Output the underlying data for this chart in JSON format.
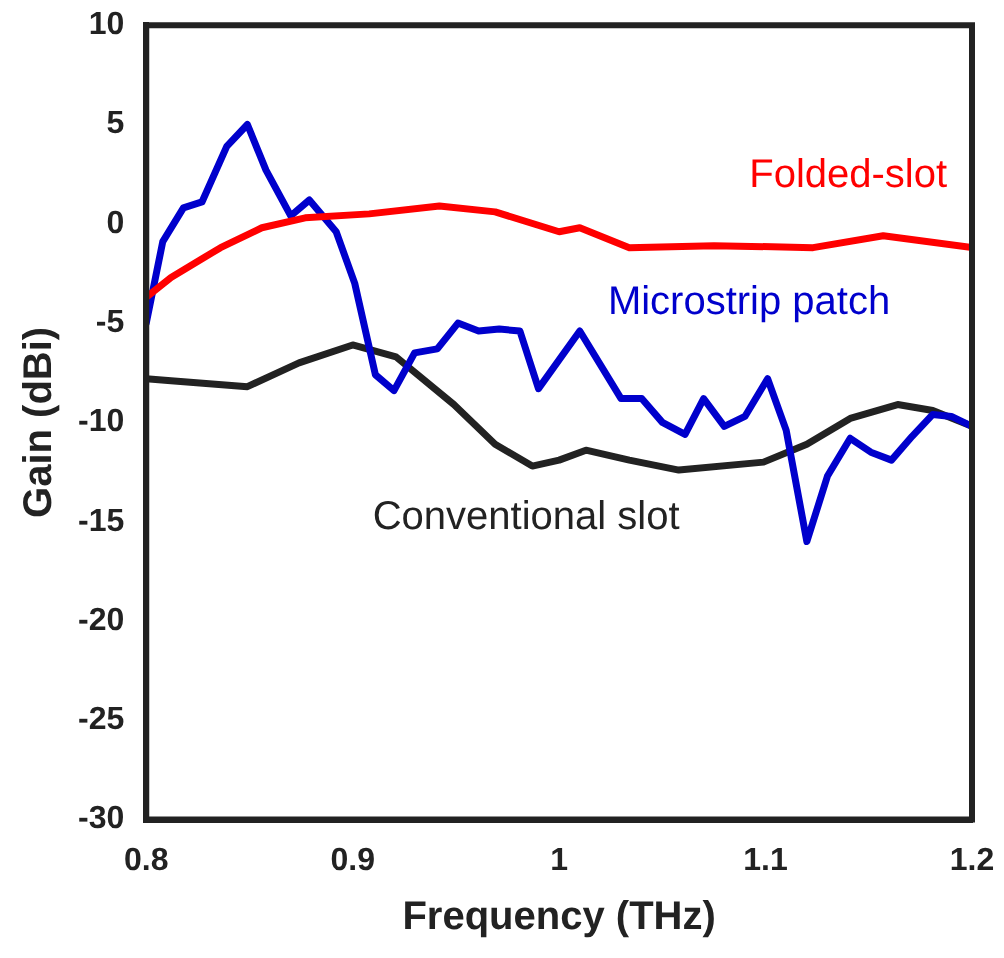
{
  "chart_data": {
    "type": "line",
    "xlabel": "Frequency (THz)",
    "ylabel": "Gain (dBi)",
    "xlim": [
      0.8,
      1.2
    ],
    "xticks": [
      0.8,
      0.9,
      1,
      1.1,
      1.2
    ],
    "ylim": [
      -30,
      10
    ],
    "yticks": [
      -30,
      -25,
      -20,
      -15,
      -10,
      -5,
      0,
      5,
      10
    ],
    "grid": false,
    "legend": false,
    "marker": "none",
    "line_style": "solid",
    "series": [
      {
        "name": "Folded-slot",
        "color": "#ff0000",
        "x": [
          0.8,
          0.812,
          0.836,
          0.856,
          0.877,
          0.908,
          0.942,
          0.969,
          1.0,
          1.01,
          1.034,
          1.075,
          1.123,
          1.157,
          1.2
        ],
        "values": [
          -3.7,
          -2.7,
          -1.2,
          -0.2,
          0.3,
          0.5,
          0.9,
          0.6,
          -0.4,
          -0.2,
          -1.2,
          -1.1,
          -1.2,
          -0.6,
          -1.2
        ]
      },
      {
        "name": "Microstrip patch",
        "color": "#0000cc",
        "x": [
          0.8,
          0.808,
          0.818,
          0.827,
          0.839,
          0.849,
          0.858,
          0.87,
          0.879,
          0.892,
          0.901,
          0.911,
          0.92,
          0.93,
          0.941,
          0.951,
          0.961,
          0.971,
          0.981,
          0.99,
          1.01,
          1.03,
          1.04,
          1.05,
          1.061,
          1.07,
          1.08,
          1.09,
          1.101,
          1.11,
          1.12,
          1.13,
          1.141,
          1.151,
          1.161,
          1.171,
          1.181,
          1.19,
          1.2
        ],
        "values": [
          -5,
          -0.9,
          0.8,
          1.1,
          3.9,
          5,
          2.7,
          0.4,
          1.2,
          -0.4,
          -3,
          -7.6,
          -8.4,
          -6.5,
          -6.3,
          -5,
          -5.4,
          -5.3,
          -5.4,
          -8.3,
          -5.4,
          -8.8,
          -8.8,
          -10,
          -10.6,
          -8.8,
          -10.2,
          -9.7,
          -7.8,
          -10.4,
          -16,
          -12.7,
          -10.8,
          -11.5,
          -11.9,
          -10.7,
          -9.6,
          -9.7,
          -10.2
        ]
      },
      {
        "name": "Conventional slot",
        "color": "#222222",
        "x": [
          0.8,
          0.812,
          0.849,
          0.874,
          0.9,
          0.921,
          0.949,
          0.969,
          0.987,
          1.0,
          1.013,
          1.034,
          1.058,
          1.099,
          1.12,
          1.141,
          1.164,
          1.181,
          1.2
        ],
        "values": [
          -7.8,
          -7.9,
          -8.2,
          -7,
          -6.1,
          -6.7,
          -9.1,
          -11.1,
          -12.2,
          -11.9,
          -11.4,
          -11.9,
          -12.4,
          -12,
          -11.1,
          -9.8,
          -9.1,
          -9.4,
          -10.2
        ]
      }
    ]
  }
}
